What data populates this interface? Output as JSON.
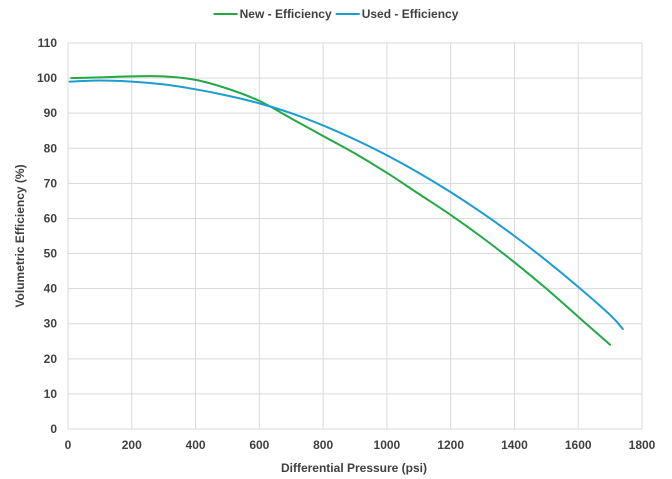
{
  "chart_data": {
    "type": "line",
    "title": "",
    "xlabel": "Differential Pressure (psi)",
    "ylabel": "Volumetric Efficiency (%)",
    "xlim": [
      0,
      1800
    ],
    "ylim": [
      0,
      110
    ],
    "xticks": [
      0,
      200,
      400,
      600,
      800,
      1000,
      1200,
      1400,
      1600,
      1800
    ],
    "yticks": [
      0,
      10,
      20,
      30,
      40,
      50,
      60,
      70,
      80,
      90,
      100,
      110
    ],
    "grid": true,
    "legend_position": "top",
    "series": [
      {
        "name": "New - Efficiency",
        "color": "#22a845",
        "points": [
          [
            10,
            100
          ],
          [
            100,
            100.2
          ],
          [
            200,
            100.5
          ],
          [
            300,
            100.5
          ],
          [
            400,
            99.5
          ],
          [
            500,
            97
          ],
          [
            600,
            93.5
          ],
          [
            700,
            88.5
          ],
          [
            800,
            83.5
          ],
          [
            900,
            78.5
          ],
          [
            1000,
            73
          ],
          [
            1100,
            67
          ],
          [
            1200,
            61
          ],
          [
            1300,
            54.5
          ],
          [
            1400,
            47.5
          ],
          [
            1500,
            40
          ],
          [
            1600,
            32
          ],
          [
            1700,
            24
          ]
        ]
      },
      {
        "name": "Used - Efficiency",
        "color": "#1b9dd1",
        "points": [
          [
            5,
            99
          ],
          [
            100,
            99.3
          ],
          [
            200,
            99
          ],
          [
            300,
            98.2
          ],
          [
            400,
            96.8
          ],
          [
            500,
            95
          ],
          [
            600,
            92.8
          ],
          [
            700,
            90
          ],
          [
            800,
            86.5
          ],
          [
            900,
            82.5
          ],
          [
            1000,
            78
          ],
          [
            1100,
            73
          ],
          [
            1200,
            67.5
          ],
          [
            1300,
            61.5
          ],
          [
            1400,
            55
          ],
          [
            1500,
            48
          ],
          [
            1600,
            40.5
          ],
          [
            1700,
            32.5
          ],
          [
            1740,
            28.5
          ]
        ]
      }
    ]
  }
}
